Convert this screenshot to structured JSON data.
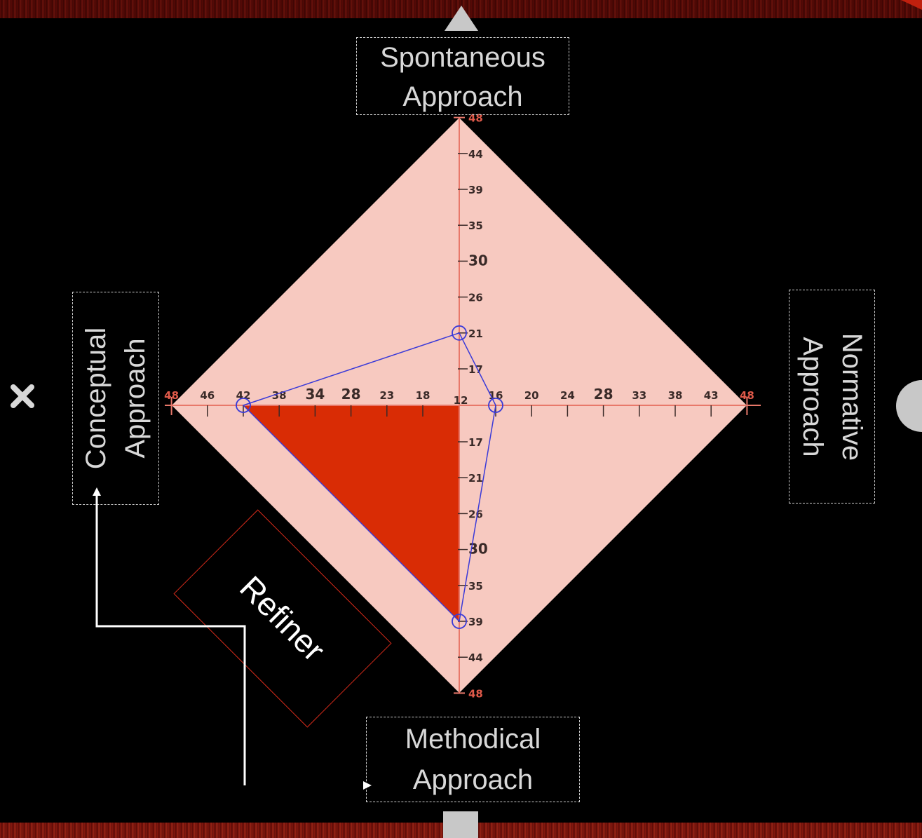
{
  "labels": {
    "top": [
      "Spontaneous",
      "Approach"
    ],
    "left": [
      "Conceptual",
      "Approach"
    ],
    "right": [
      "Normative",
      "Approach"
    ],
    "bottom": [
      "Methodical",
      "Approach"
    ]
  },
  "refiner_label": "Refiner",
  "nav_icons": {
    "up": "triangle-up-icon",
    "left": "cross-icon",
    "right": "circle-icon",
    "down": "square-icon"
  },
  "colors": {
    "diamond_fill": "#f7c9c0",
    "filled_region": "#d92c05",
    "profile_line": "#3a3ad8",
    "axis": "#e8786a"
  },
  "chart_data": {
    "type": "radar",
    "axes": {
      "top": {
        "ticks": [
          "48",
          "44",
          "39",
          "35",
          "30",
          "26",
          "21",
          "17"
        ]
      },
      "bottom": {
        "ticks": [
          "17",
          "21",
          "26",
          "30",
          "35",
          "39",
          "44",
          "48"
        ]
      },
      "left": {
        "ticks": [
          "48",
          "46",
          "42",
          "38",
          "34",
          "28",
          "23",
          "18"
        ]
      },
      "right": {
        "ticks": [
          "16",
          "20",
          "24",
          "28",
          "33",
          "38",
          "43",
          "48"
        ]
      },
      "center_label": "12"
    },
    "profile": {
      "top": 21,
      "right": 16,
      "bottom": 39,
      "left": 42
    },
    "filled_quadrant": "bottom-left"
  }
}
